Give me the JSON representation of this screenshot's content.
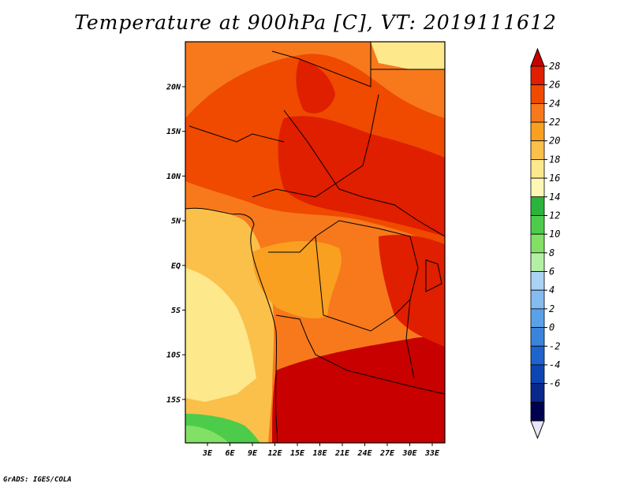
{
  "title": "Temperature at 900hPa [C], VT: 2019111612",
  "credit": "GrADS: IGES/COLA",
  "map": {
    "lat_ticks": [
      "20N",
      "15N",
      "10N",
      "5N",
      "EQ",
      "5S",
      "10S",
      "15S"
    ],
    "lon_ticks": [
      "3E",
      "6E",
      "9E",
      "12E",
      "15E",
      "18E",
      "21E",
      "24E",
      "27E",
      "30E",
      "33E"
    ]
  },
  "colorbar": {
    "labels": [
      "28",
      "26",
      "24",
      "22",
      "20",
      "18",
      "16",
      "14",
      "12",
      "10",
      "8",
      "6",
      "4",
      "2",
      "0",
      "-2",
      "-4",
      "-6"
    ],
    "colors": [
      "#c80000",
      "#e01e00",
      "#ef4a00",
      "#f7791c",
      "#f9a020",
      "#fbc04a",
      "#fde88c",
      "#fff8b4",
      "#2ab43c",
      "#4ccc4a",
      "#82e066",
      "#b4f0a4",
      "#aad2f4",
      "#84bcf0",
      "#5aa2e8",
      "#3a84dc",
      "#1e64cc",
      "#0c46b4",
      "#08288c",
      "#000050",
      "#e6e6f8"
    ]
  },
  "colors": {
    "frame": "#000000",
    "background": "#ffffff"
  }
}
